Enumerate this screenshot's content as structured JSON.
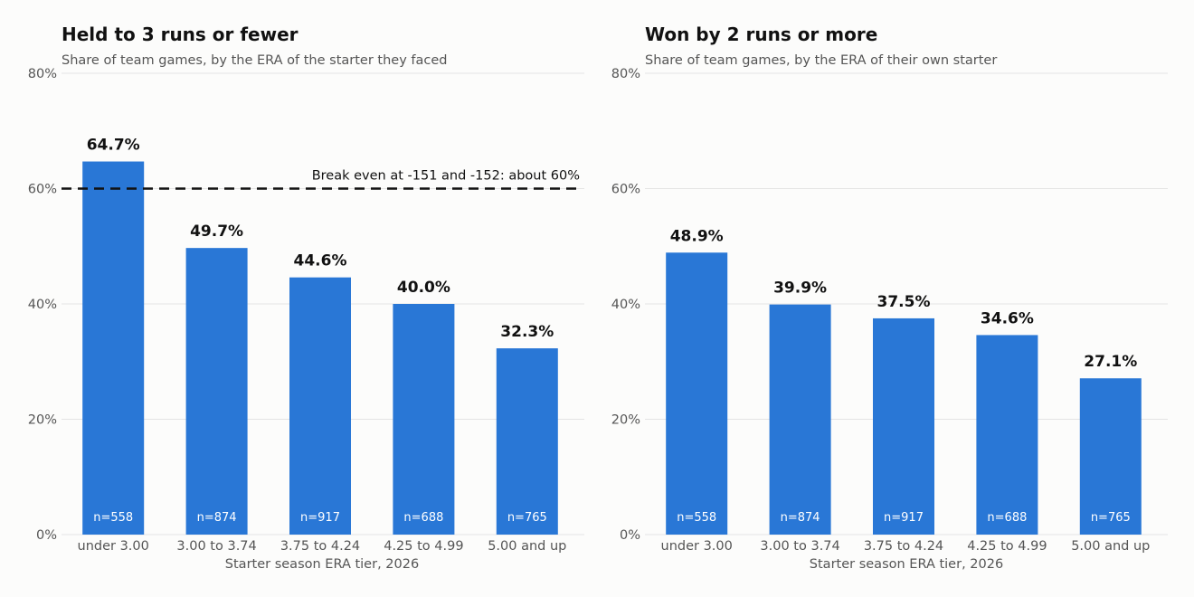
{
  "chart_data": [
    {
      "type": "bar",
      "title": "Held to 3 runs or fewer",
      "subtitle": "Share of team games, by the ERA of the starter they faced",
      "xlabel": "Starter season ERA tier, 2026",
      "ylabel": "",
      "categories": [
        "under 3.00",
        "3.00 to 3.74",
        "3.75 to 4.24",
        "4.25 to 4.99",
        "5.00 and up"
      ],
      "values": [
        64.7,
        49.7,
        44.6,
        40.0,
        32.3
      ],
      "value_labels": [
        "64.7%",
        "49.7%",
        "44.6%",
        "40.0%",
        "32.3%"
      ],
      "sample_labels": [
        "n=558",
        "n=874",
        "n=917",
        "n=688",
        "n=765"
      ],
      "ylim": [
        0,
        80
      ],
      "yticks": [
        0,
        20,
        40,
        60,
        80
      ],
      "ytick_labels": [
        "0%",
        "20%",
        "40%",
        "60%",
        "80%"
      ],
      "grid": true,
      "legend": "none",
      "reference_line": {
        "value": 60,
        "style": "dashed",
        "label": "Break even at -151 and -152: about 60%"
      }
    },
    {
      "type": "bar",
      "title": "Won by 2 runs or more",
      "subtitle": "Share of team games, by the ERA of their own starter",
      "xlabel": "Starter season ERA tier, 2026",
      "ylabel": "",
      "categories": [
        "under 3.00",
        "3.00 to 3.74",
        "3.75 to 4.24",
        "4.25 to 4.99",
        "5.00 and up"
      ],
      "values": [
        48.9,
        39.9,
        37.5,
        34.6,
        27.1
      ],
      "value_labels": [
        "48.9%",
        "39.9%",
        "37.5%",
        "34.6%",
        "27.1%"
      ],
      "sample_labels": [
        "n=558",
        "n=874",
        "n=917",
        "n=688",
        "n=765"
      ],
      "ylim": [
        0,
        80
      ],
      "yticks": [
        0,
        20,
        40,
        60,
        80
      ],
      "ytick_labels": [
        "0%",
        "20%",
        "40%",
        "60%",
        "80%"
      ],
      "grid": true,
      "legend": "none"
    }
  ],
  "colors": {
    "bar": "#2977d6",
    "grid": "#e4e4e4",
    "reference": "#111111",
    "background": "#fcfcfb"
  }
}
